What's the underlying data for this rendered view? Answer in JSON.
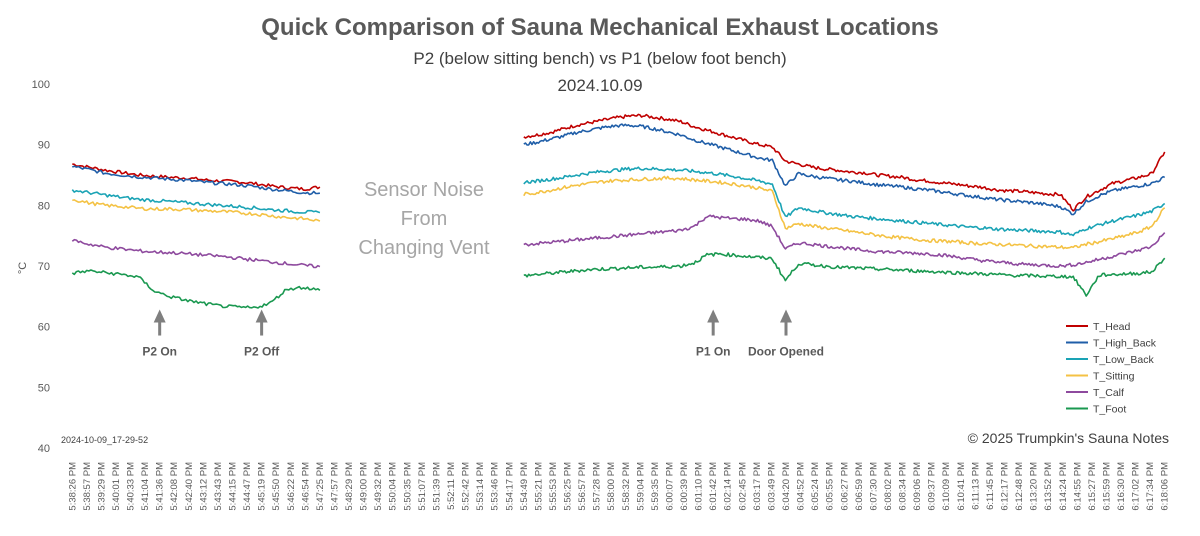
{
  "chart_data": {
    "type": "line",
    "title": "Quick Comparison of Sauna Mechanical Exhaust Locations",
    "subtitle": "P2 (below sitting bench) vs P1 (below foot bench)",
    "date": "2024.10.09",
    "ylabel": "°C",
    "xlabel": "",
    "ylim": [
      40,
      100
    ],
    "y_ticks": [
      40,
      50,
      60,
      70,
      80,
      90,
      100
    ],
    "grid": false,
    "legend_position": "right",
    "x_tick_labels": [
      "5:38:26 PM",
      "5:38:57 PM",
      "5:39:29 PM",
      "5:40:01 PM",
      "5:40:33 PM",
      "5:41:04 PM",
      "5:41:36 PM",
      "5:42:08 PM",
      "5:42:40 PM",
      "5:43:12 PM",
      "5:43:43 PM",
      "5:44:15 PM",
      "5:44:47 PM",
      "5:45:19 PM",
      "5:45:50 PM",
      "5:46:22 PM",
      "5:46:54 PM",
      "5:47:25 PM",
      "5:47:57 PM",
      "5:48:29 PM",
      "5:49:00 PM",
      "5:49:32 PM",
      "5:50:04 PM",
      "5:50:35 PM",
      "5:51:07 PM",
      "5:51:39 PM",
      "5:52:11 PM",
      "5:52:42 PM",
      "5:53:14 PM",
      "5:53:46 PM",
      "5:54:17 PM",
      "5:54:49 PM",
      "5:55:21 PM",
      "5:55:53 PM",
      "5:56:25 PM",
      "5:56:57 PM",
      "5:57:28 PM",
      "5:58:00 PM",
      "5:58:32 PM",
      "5:59:04 PM",
      "5:59:35 PM",
      "6:00:07 PM",
      "6:00:39 PM",
      "6:01:10 PM",
      "6:01:42 PM",
      "6:02:14 PM",
      "6:02:45 PM",
      "6:03:17 PM",
      "6:03:49 PM",
      "6:04:20 PM",
      "6:04:52 PM",
      "6:05:24 PM",
      "6:05:55 PM",
      "6:06:27 PM",
      "6:06:59 PM",
      "6:07:30 PM",
      "6:08:02 PM",
      "6:08:34 PM",
      "6:09:06 PM",
      "6:09:37 PM",
      "6:10:09 PM",
      "6:10:41 PM",
      "6:11:13 PM",
      "6:11:45 PM",
      "6:12:17 PM",
      "6:12:48 PM",
      "6:13:20 PM",
      "6:13:52 PM",
      "6:14:24 PM",
      "6:14:55 PM",
      "6:15:27 PM",
      "6:15:59 PM",
      "6:16:30 PM",
      "6:17:02 PM",
      "6:17:34 PM",
      "6:18:06 PM"
    ],
    "segments": [
      {
        "x_start": "5:38:26 PM",
        "x_end": "5:47:25 PM"
      },
      {
        "x_start": "5:54:49 PM",
        "x_end": "6:18:06 PM"
      }
    ],
    "series": [
      {
        "name": "T_Head",
        "color": "#c00000",
        "segment1": [
          86.8,
          86.3,
          85.8,
          85.4,
          85.0,
          84.8,
          84.6,
          84.5,
          84.2,
          84.0,
          83.9,
          83.6,
          83.2,
          82.9,
          82.7,
          83.0
        ],
        "segment2": [
          91.3,
          91.6,
          92.0,
          92.6,
          93.2,
          93.6,
          94.0,
          94.4,
          94.7,
          94.8,
          94.5,
          94.2,
          93.8,
          93.0,
          92.4,
          91.8,
          91.2,
          90.6,
          90.0,
          89.6,
          87.3,
          86.8,
          86.3,
          86.0,
          85.8,
          85.5,
          85.4,
          85.0,
          84.8,
          84.6,
          84.2,
          84.0,
          83.7,
          83.5,
          83.2,
          83.0,
          82.6,
          82.4,
          82.3,
          82.1,
          81.9,
          81.8,
          79.3,
          81.4,
          82.5,
          83.6,
          84.1,
          84.6,
          85.2,
          88.8
        ]
      },
      {
        "name": "T_High_Back",
        "color": "#1f5ea8",
        "segment1": [
          86.4,
          85.9,
          85.3,
          85.0,
          84.7,
          84.5,
          84.3,
          84.1,
          83.8,
          83.6,
          83.4,
          83.1,
          82.7,
          82.4,
          82.1,
          82.0
        ],
        "segment2": [
          90.0,
          90.4,
          90.9,
          91.4,
          92.0,
          92.4,
          92.8,
          93.1,
          93.2,
          93.0,
          92.6,
          92.1,
          91.6,
          90.8,
          90.2,
          89.6,
          89.0,
          88.4,
          87.8,
          87.4,
          83.2,
          85.2,
          84.8,
          84.5,
          84.2,
          84.0,
          83.7,
          83.4,
          83.2,
          83.0,
          82.7,
          82.5,
          82.2,
          81.9,
          81.6,
          81.3,
          81.0,
          80.8,
          80.6,
          80.4,
          80.1,
          79.8,
          78.6,
          80.6,
          81.6,
          82.4,
          82.8,
          83.2,
          83.6,
          84.6
        ]
      },
      {
        "name": "T_Low_Back",
        "color": "#1aa3b5",
        "segment1": [
          82.5,
          82.1,
          81.7,
          81.3,
          81.0,
          80.8,
          80.6,
          80.4,
          80.2,
          80.0,
          79.8,
          79.6,
          79.3,
          79.1,
          78.9,
          78.8
        ],
        "segment2": [
          83.8,
          84.0,
          84.3,
          84.6,
          85.0,
          85.3,
          85.6,
          85.8,
          86.0,
          86.1,
          86.0,
          85.9,
          85.8,
          85.6,
          85.4,
          85.1,
          84.8,
          84.4,
          84.0,
          83.5,
          78.0,
          79.6,
          79.2,
          78.8,
          78.5,
          78.2,
          78.0,
          77.8,
          77.6,
          77.4,
          77.2,
          77.0,
          76.8,
          76.6,
          76.4,
          76.3,
          76.1,
          76.0,
          75.9,
          75.8,
          75.7,
          75.6,
          75.1,
          76.2,
          76.8,
          77.4,
          77.9,
          78.4,
          79.0,
          80.3
        ]
      },
      {
        "name": "T_Sitting",
        "color": "#f4c244",
        "segment1": [
          81.0,
          80.4,
          80.0,
          79.8,
          79.5,
          79.4,
          79.4,
          79.3,
          79.1,
          79.0,
          78.8,
          78.6,
          78.3,
          78.0,
          77.8,
          77.4
        ],
        "segment2": [
          81.8,
          82.1,
          82.5,
          82.9,
          83.3,
          83.6,
          83.9,
          84.1,
          84.2,
          84.3,
          84.4,
          84.5,
          84.4,
          84.2,
          84.0,
          83.8,
          83.5,
          83.2,
          82.8,
          82.3,
          76.2,
          77.0,
          76.6,
          76.3,
          76.0,
          75.7,
          75.4,
          75.1,
          74.8,
          74.6,
          74.4,
          74.2,
          74.1,
          74.0,
          73.8,
          73.7,
          73.6,
          73.5,
          73.4,
          73.3,
          73.2,
          73.1,
          73.0,
          73.6,
          74.0,
          74.5,
          75.0,
          75.6,
          76.5,
          79.6
        ]
      },
      {
        "name": "T_Calf",
        "color": "#8e4a9e",
        "segment1": [
          74.3,
          73.6,
          73.1,
          72.8,
          72.5,
          72.3,
          72.2,
          72.0,
          71.8,
          71.6,
          71.3,
          71.0,
          70.7,
          70.4,
          70.1,
          69.9
        ],
        "segment2": [
          73.5,
          73.7,
          73.9,
          74.1,
          74.3,
          74.5,
          74.7,
          74.9,
          75.1,
          75.3,
          75.5,
          75.7,
          75.9,
          76.5,
          78.2,
          78.0,
          77.8,
          77.7,
          77.4,
          76.5,
          72.8,
          73.8,
          73.6,
          73.3,
          73.1,
          72.8,
          72.6,
          72.4,
          72.3,
          72.2,
          72.1,
          72.0,
          71.8,
          71.5,
          71.2,
          70.9,
          70.7,
          70.5,
          70.3,
          70.2,
          70.1,
          70.0,
          70.2,
          70.6,
          71.1,
          71.6,
          72.1,
          72.6,
          73.2,
          75.5
        ]
      },
      {
        "name": "T_Foot",
        "color": "#1a9850",
        "segment1": [
          68.8,
          69.2,
          68.9,
          68.6,
          68.2,
          65.8,
          64.9,
          64.3,
          63.8,
          63.4,
          63.2,
          63.1,
          63.9,
          66.2,
          66.5,
          66.0
        ],
        "segment2": [
          68.4,
          68.6,
          68.8,
          69.0,
          69.2,
          69.4,
          69.5,
          69.6,
          69.7,
          69.8,
          69.8,
          69.9,
          70.0,
          70.5,
          71.8,
          72.0,
          71.8,
          71.6,
          71.4,
          71.2,
          67.6,
          70.4,
          70.2,
          70.0,
          69.8,
          69.7,
          69.6,
          69.5,
          69.4,
          69.3,
          69.2,
          69.1,
          69.0,
          68.9,
          68.8,
          68.7,
          68.6,
          68.5,
          68.4,
          68.4,
          68.3,
          68.3,
          68.2,
          65.2,
          68.5,
          68.6,
          68.7,
          68.8,
          69.0,
          71.3
        ]
      }
    ],
    "annotations": [
      {
        "text": "P2 On",
        "x": "5:41:36 PM",
        "y": 62
      },
      {
        "text": "P2 Off",
        "x": "5:45:19 PM",
        "y": 62
      },
      {
        "text": "P1 On",
        "x": "6:01:42 PM",
        "y": 62
      },
      {
        "text": "Door Opened",
        "x": "6:04:20 PM",
        "y": 62
      }
    ],
    "gap_note": "Sensor Noise From Changing Vent",
    "footnote_left": "2024-10-09_17-29-52",
    "footnote_right": "© 2025 Trumpkin's Sauna Notes"
  },
  "colors": {
    "text": "#595959",
    "arrow": "#7f7f7f",
    "noise_text": "#a6a6a6"
  }
}
